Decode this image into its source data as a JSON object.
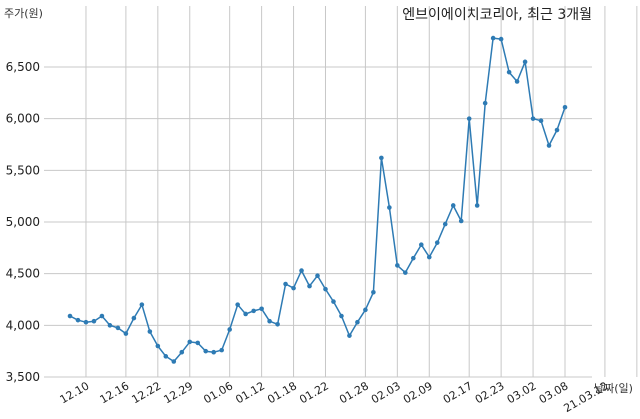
{
  "chart_data": {
    "type": "line",
    "title": "엔브이에이치코리아, 최근 3개월",
    "xlabel": "날짜(일)",
    "ylabel": "주가(원)",
    "ylim": [
      3500,
      6800
    ],
    "yticks": [
      3500,
      4000,
      4500,
      5000,
      5500,
      6000,
      6500
    ],
    "ytick_labels": [
      "3,500",
      "4,000",
      "4,500",
      "5,000",
      "5,500",
      "6,000",
      "6,500"
    ],
    "x_tick_positions": [
      2,
      7,
      11,
      15,
      20,
      24,
      28,
      32,
      37,
      41,
      45,
      50,
      54,
      58,
      62,
      67,
      71
    ],
    "x_tick_labels": [
      "12.10",
      "12.16",
      "12.22",
      "12.29",
      "01.06",
      "01.12",
      "01.18",
      "01.22",
      "01.28",
      "02.03",
      "02.09",
      "02.17",
      "02.23",
      "03.02",
      "03.08",
      "21.03.12",
      ""
    ],
    "grid": true,
    "legend": "none",
    "colors": {
      "line": "#2e7bb4",
      "grid": "#c8c8c8"
    },
    "series": [
      {
        "values": [
          4090,
          4050,
          4030,
          4040,
          4090,
          4000,
          3975,
          3920,
          4070,
          4200,
          3940,
          3800,
          3700,
          3650,
          3740,
          3840,
          3830,
          3750,
          3740,
          3760,
          3960,
          4200,
          4110,
          4140,
          4160,
          4040,
          4010,
          4400,
          4360,
          4530,
          4380,
          4480,
          4350,
          4230,
          4090,
          3900,
          4030,
          4150,
          4320,
          5620,
          5140,
          4580,
          4510,
          4650,
          4780,
          4660,
          4800,
          4980,
          5160,
          5010,
          6000,
          5160,
          6150,
          6780,
          6770,
          6450,
          6360,
          6550,
          6000,
          5980,
          5740,
          5890,
          6110
        ]
      }
    ]
  }
}
